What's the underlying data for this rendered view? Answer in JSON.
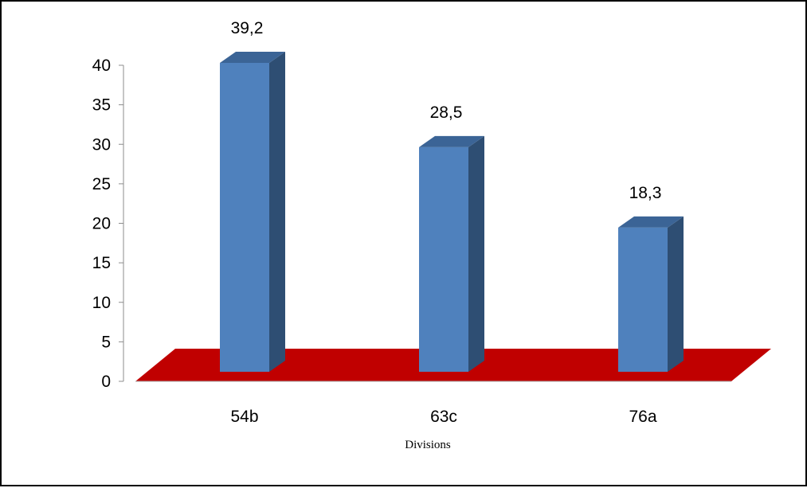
{
  "chart_data": {
    "type": "bar",
    "style": "3d-column",
    "categories": [
      "54b",
      "63c",
      "76a"
    ],
    "values": [
      39.2,
      28.5,
      18.3
    ],
    "data_labels": [
      "39,2",
      "28,5",
      "18,3"
    ],
    "xlabel": "Divisions",
    "ylabel": "",
    "ylim": [
      0,
      40
    ],
    "yticks": [
      0,
      5,
      10,
      15,
      20,
      25,
      30,
      35,
      40
    ],
    "grid": false,
    "legend": "none",
    "colors": {
      "bar_front": "#4F81BD",
      "bar_side": "#2E4E73",
      "bar_top": "#3B6496",
      "floor": "#C00000"
    }
  }
}
